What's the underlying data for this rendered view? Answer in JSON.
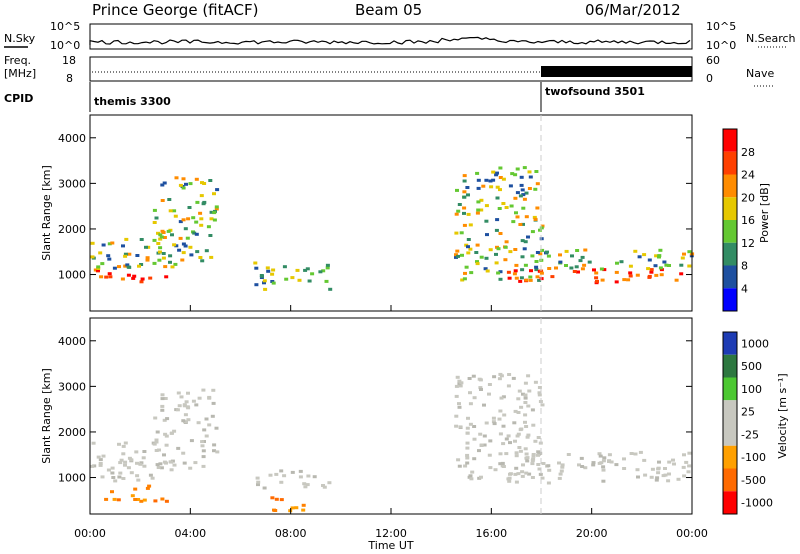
{
  "header": {
    "left": "Prince George (fitACF)",
    "center": "Beam 05",
    "right": "06/Mar/2012"
  },
  "top_panels": {
    "nsky_label": "N.Sky",
    "nsearch_label": "N.Search",
    "nsky_ticks": [
      "10^5",
      "10^0"
    ],
    "nsearch_ticks": [
      "10^5",
      "10^0"
    ],
    "freq_label_1": "Freq.",
    "freq_label_2": "[MHz]",
    "freq_ticks": [
      "18",
      "8"
    ],
    "nave_label": "Nave",
    "nave_ticks": [
      "60",
      "0"
    ],
    "cpid_label": "CPID",
    "cpid_modes": [
      {
        "name": "themis 3300",
        "start_hour": 0
      },
      {
        "name": "twofsound 3501",
        "start_hour": 18
      }
    ]
  },
  "chart_data": [
    {
      "type": "heatmap",
      "title": "",
      "xlabel": "",
      "ylabel": "Slant Range [km]",
      "xlim": [
        0,
        24
      ],
      "ylim": [
        200,
        4500
      ],
      "yticks": [
        "1000",
        "2000",
        "3000",
        "4000"
      ],
      "colorbar_label": "Power [dB]",
      "colorbar_ticks": [
        "28",
        "24",
        "20",
        "16",
        "12",
        "8",
        "4"
      ],
      "colors": [
        "#ff0000",
        "#ff4000",
        "#ff8c00",
        "#e6c800",
        "#64c832",
        "#328c64",
        "#1e50a0",
        "#0000ff"
      ],
      "regions": [
        {
          "t0": 0.0,
          "t1": 3.0,
          "r0": 850,
          "r1": 1150,
          "level": "high"
        },
        {
          "t0": 0.0,
          "t1": 3.0,
          "r0": 1150,
          "r1": 1900,
          "level": "mid"
        },
        {
          "t0": 2.5,
          "t1": 5.0,
          "r0": 1200,
          "r1": 3200,
          "level": "mid"
        },
        {
          "t0": 6.5,
          "t1": 9.5,
          "r0": 700,
          "r1": 1300,
          "level": "low"
        },
        {
          "t0": 14.5,
          "t1": 18.0,
          "r0": 900,
          "r1": 3400,
          "level": "mid"
        },
        {
          "t0": 16.5,
          "t1": 24.0,
          "r0": 850,
          "r1": 1150,
          "level": "high"
        },
        {
          "t0": 18.0,
          "t1": 24.0,
          "r0": 1150,
          "r1": 1600,
          "level": "mid"
        }
      ]
    },
    {
      "type": "heatmap",
      "title": "",
      "xlabel": "Time UT",
      "ylabel": "Slant Range [km]",
      "xlim": [
        0,
        24
      ],
      "ylim": [
        200,
        4500
      ],
      "xticks": [
        "00:00",
        "04:00",
        "08:00",
        "12:00",
        "16:00",
        "20:00",
        "00:00"
      ],
      "yticks": [
        "1000",
        "2000",
        "3000",
        "4000"
      ],
      "colorbar_label": "Velocity [m s⁻¹]",
      "colorbar_ticks": [
        "1000",
        "500",
        "100",
        "25",
        "-25",
        "-100",
        "-500",
        "-1000"
      ],
      "colors": [
        "#1e3cb4",
        "#2d7840",
        "#4cc832",
        "#c8c8c0",
        "#c8c8c0",
        "#ffa000",
        "#ff6a00",
        "#ff0000"
      ],
      "regions": [
        {
          "t0": 0.0,
          "t1": 3.0,
          "r0": 900,
          "r1": 1800,
          "level": "ground"
        },
        {
          "t0": 0.5,
          "t1": 3.0,
          "r0": 500,
          "r1": 850,
          "level": "neg"
        },
        {
          "t0": 2.5,
          "t1": 5.0,
          "r0": 1200,
          "r1": 3000,
          "level": "ground"
        },
        {
          "t0": 6.5,
          "t1": 9.5,
          "r0": 800,
          "r1": 1200,
          "level": "ground"
        },
        {
          "t0": 7.0,
          "t1": 9.0,
          "r0": 300,
          "r1": 600,
          "level": "neg"
        },
        {
          "t0": 14.5,
          "t1": 18.0,
          "r0": 1000,
          "r1": 3300,
          "level": "ground"
        },
        {
          "t0": 16.5,
          "t1": 24.0,
          "r0": 900,
          "r1": 1600,
          "level": "ground"
        }
      ]
    }
  ]
}
